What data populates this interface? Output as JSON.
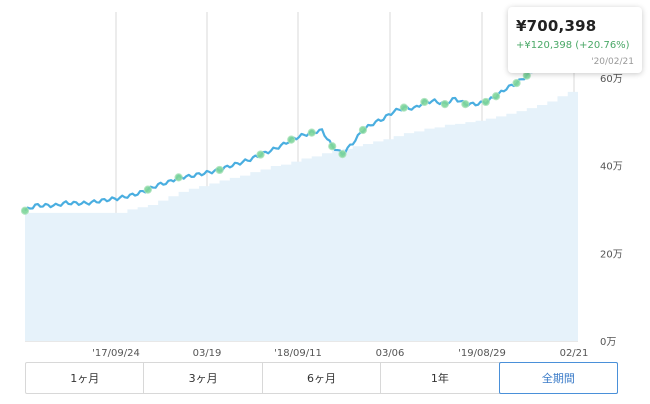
{
  "tooltip": {
    "value": "¥700,398",
    "change": "+¥120,398 (+20.76%)",
    "date": "'20/02/21"
  },
  "tabs": [
    {
      "label": "1ヶ月",
      "active": false
    },
    {
      "label": "3ヶ月",
      "active": false
    },
    {
      "label": "6ヶ月",
      "active": false
    },
    {
      "label": "1年",
      "active": false
    },
    {
      "label": "全期間",
      "active": true
    }
  ],
  "colors": {
    "line": "#4aaee0",
    "area": "#e6f2fa",
    "marker": "#7fd69a",
    "gain": "#4aa867",
    "active_tab": "#4a90d9"
  },
  "chart_data": {
    "type": "line",
    "x_tick_labels": [
      "'17/09/24",
      "03/19",
      "'18/09/11",
      "03/06",
      "'19/08/29",
      "02/21"
    ],
    "y_tick_labels": [
      "0万",
      "20万",
      "40万",
      "60万"
    ],
    "ylim": [
      0,
      750000
    ],
    "grid": true,
    "series": [
      {
        "role": "valuation",
        "style": "line",
        "x": [
          0,
          10,
          20,
          30,
          40,
          50,
          60,
          70,
          80,
          90,
          100,
          110,
          120,
          130,
          140,
          150,
          160,
          170,
          180,
          190,
          200,
          210,
          220,
          230,
          240,
          250,
          260,
          270,
          280,
          290,
          300,
          310,
          320,
          330,
          340,
          350,
          360,
          370,
          380,
          390,
          400,
          410,
          420,
          430,
          440,
          450,
          460,
          470,
          480,
          490,
          500,
          510,
          520,
          530,
          540
        ],
        "values": [
          297000,
          309000,
          309000,
          309000,
          315000,
          314000,
          314000,
          318000,
          322000,
          325000,
          330000,
          336000,
          345000,
          356000,
          362000,
          373000,
          375000,
          380000,
          385000,
          390000,
          399000,
          406000,
          414000,
          425000,
          434000,
          445000,
          459000,
          468000,
          475000,
          480000,
          444000,
          426000,
          451000,
          481000,
          496000,
          507000,
          523000,
          532000,
          530000,
          545000,
          547000,
          540000,
          553000,
          540000,
          540000,
          545000,
          558000,
          576000,
          588000,
          605000,
          624000,
          642000,
          661000,
          672000,
          700398
        ]
      },
      {
        "role": "principal",
        "style": "area",
        "x": [
          0,
          10,
          20,
          30,
          40,
          50,
          60,
          70,
          80,
          90,
          100,
          110,
          120,
          130,
          140,
          150,
          160,
          170,
          180,
          190,
          200,
          210,
          220,
          230,
          240,
          250,
          260,
          270,
          280,
          290,
          300,
          310,
          320,
          330,
          340,
          350,
          360,
          370,
          380,
          390,
          400,
          410,
          420,
          430,
          440,
          450,
          460,
          470,
          480,
          490,
          500,
          510,
          520,
          530,
          540
        ],
        "values": [
          292000,
          292000,
          292000,
          292000,
          292000,
          292000,
          292000,
          292000,
          292000,
          292000,
          300000,
          305000,
          310000,
          320000,
          330000,
          340000,
          347000,
          353000,
          359000,
          366000,
          372000,
          377000,
          385000,
          391000,
          399000,
          402000,
          409000,
          416000,
          421000,
          428000,
          433000,
          438000,
          444000,
          449000,
          455000,
          460000,
          467000,
          474000,
          478000,
          484000,
          487000,
          493000,
          495000,
          499000,
          502000,
          507000,
          512000,
          518000,
          524000,
          531000,
          538000,
          546000,
          558000,
          568000,
          580000
        ]
      }
    ]
  }
}
